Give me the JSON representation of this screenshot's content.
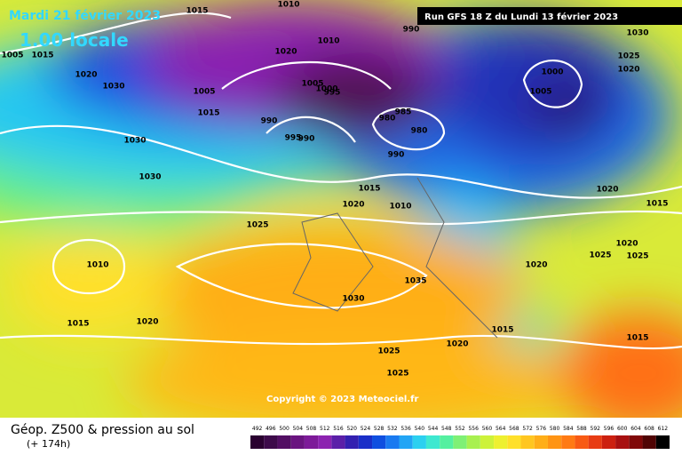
{
  "header": {
    "date": "Mardi 21 février 2023",
    "local_time": "1.00 locale",
    "run": "Run GFS 18 Z du Lundi 13 février 2023"
  },
  "copyright": "Copyright © 2023 Meteociel.fr",
  "footer": {
    "title": "Géop. Z500 & pression au sol",
    "lead": "(+ 174h)"
  },
  "isobar_labels": [
    "1015",
    "1010",
    "1005",
    "1015",
    "1020",
    "1030",
    "1005",
    "1015",
    "1020",
    "1010",
    "990",
    "1005",
    "1000",
    "995",
    "990",
    "995",
    "990",
    "980",
    "985",
    "980",
    "990",
    "1030",
    "1030",
    "1015",
    "1020",
    "1010",
    "1025",
    "1010",
    "1030",
    "1035",
    "1015",
    "1020",
    "1020",
    "1015",
    "1025",
    "1025",
    "1020",
    "1000",
    "1005",
    "1020",
    "1015",
    "1020",
    "1025",
    "1025",
    "1015",
    "1030",
    "1025",
    "1020"
  ],
  "scale": {
    "ticks": [
      492,
      496,
      500,
      504,
      508,
      512,
      516,
      520,
      524,
      528,
      532,
      536,
      540,
      544,
      548,
      552,
      556,
      560,
      564,
      568,
      572,
      576,
      580,
      584,
      588,
      592,
      596,
      600,
      604,
      608,
      612
    ],
    "colors": [
      "#2a0030",
      "#3d0a4a",
      "#520e63",
      "#6a1480",
      "#7d1a99",
      "#8c23b0",
      "#5b1fa8",
      "#3320b0",
      "#1a2fc8",
      "#0f4fe0",
      "#1a7af0",
      "#22a5f5",
      "#2cd0f0",
      "#3ee8d0",
      "#55f0a0",
      "#7ff075",
      "#a8f050",
      "#cdf23a",
      "#eef030",
      "#ffe02a",
      "#ffc620",
      "#ffae18",
      "#ff9414",
      "#ff7a14",
      "#f85a14",
      "#e83c14",
      "#cc2010",
      "#a81010",
      "#800808",
      "#500404",
      "#000000"
    ]
  }
}
